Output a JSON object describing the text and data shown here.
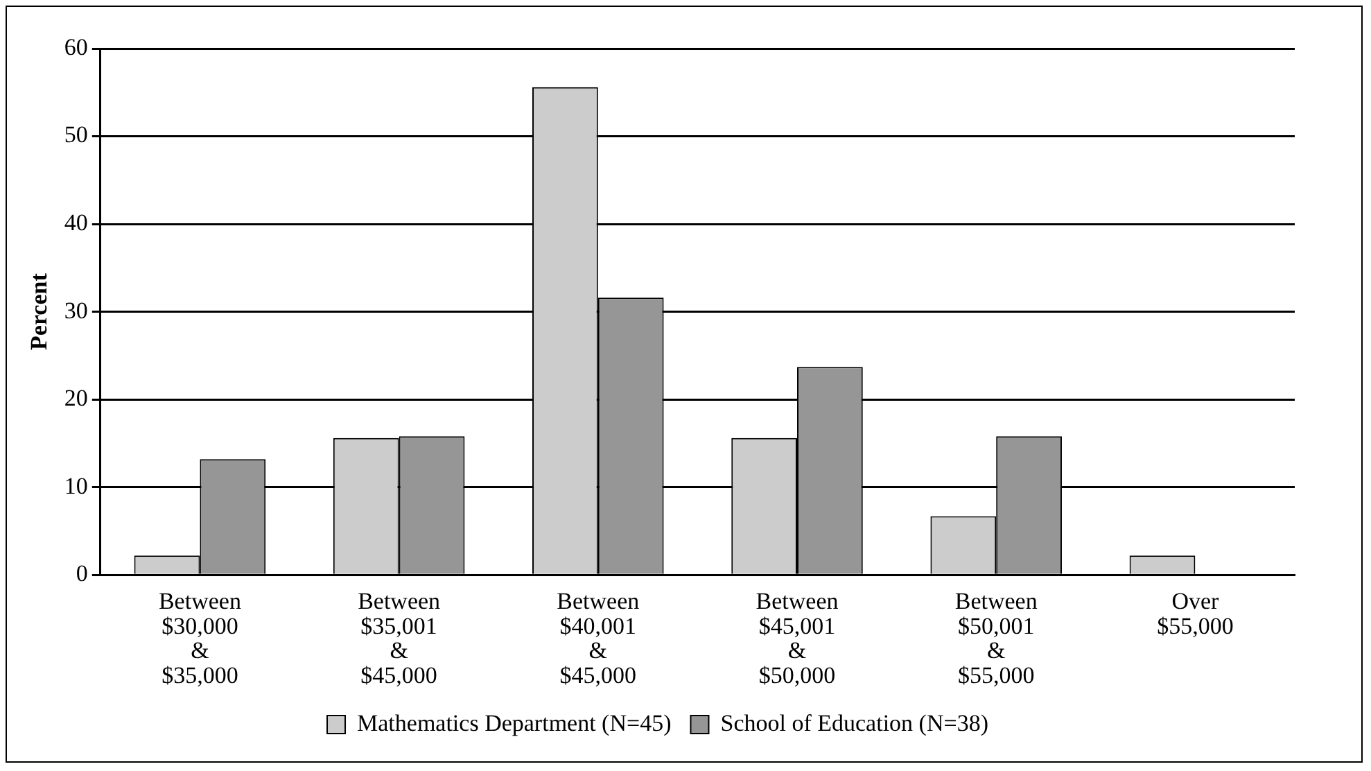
{
  "chart_data": {
    "type": "bar",
    "ylabel": "Percent",
    "categories": [
      "Between\n$30,000\n&\n$35,000",
      "Between\n$35,001\n&\n$45,000",
      "Between\n$40,001\n&\n$45,000",
      "Between\n$45,001\n&\n$50,000",
      "Between\n$50,001\n&\n$55,000",
      "Over\n$55,000"
    ],
    "series": [
      {
        "name": "Mathematics Department (N=45)",
        "color": "#cccccc",
        "values": [
          2.2,
          15.6,
          55.6,
          15.6,
          6.7,
          2.2
        ]
      },
      {
        "name": "School of Education (N=38)",
        "color": "#969696",
        "values": [
          13.2,
          15.8,
          31.6,
          23.7,
          15.8,
          0
        ]
      }
    ],
    "ylim": [
      0,
      60
    ],
    "yticks": [
      0,
      10,
      20,
      30,
      40,
      50,
      60
    ],
    "grid": "y",
    "legend": "bottom"
  }
}
